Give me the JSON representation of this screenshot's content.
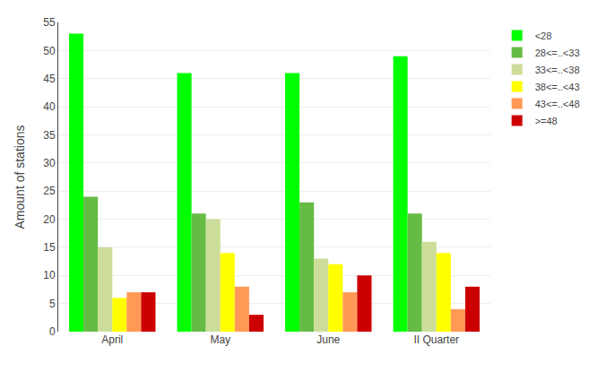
{
  "chart_data": {
    "type": "bar",
    "categories": [
      "April",
      "May",
      "June",
      "II Quarter"
    ],
    "series": [
      {
        "name": "<28",
        "color": "#00ff00",
        "values": [
          53,
          46,
          46,
          49
        ]
      },
      {
        "name": "28<=..<33",
        "color": "#66bb44",
        "values": [
          24,
          21,
          23,
          21
        ]
      },
      {
        "name": "33<=..<38",
        "color": "#ccdd99",
        "values": [
          15,
          20,
          13,
          16
        ]
      },
      {
        "name": "38<=..<43",
        "color": "#ffff00",
        "values": [
          6,
          14,
          12,
          14
        ]
      },
      {
        "name": "43<=..<48",
        "color": "#ff9955",
        "values": [
          7,
          8,
          7,
          4
        ]
      },
      {
        "name": ">=48",
        "color": "#cc0000",
        "values": [
          7,
          3,
          10,
          8
        ]
      }
    ],
    "ylabel": "Amount of stations",
    "ylim": [
      0,
      55
    ],
    "yticks": [
      0,
      5,
      10,
      15,
      20,
      25,
      30,
      35,
      40,
      45,
      50,
      55
    ],
    "grid": true,
    "legend": "upper right"
  }
}
